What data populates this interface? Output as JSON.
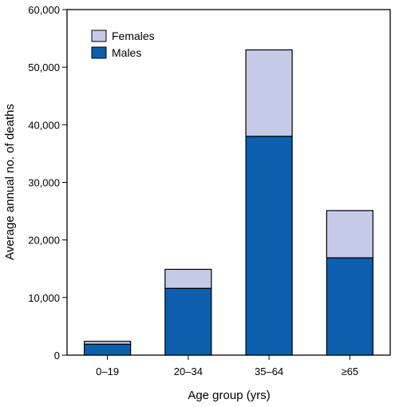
{
  "chart_data": {
    "type": "bar",
    "stacked": true,
    "categories": [
      "0–19",
      "20–34",
      "35–64",
      "≥65"
    ],
    "series": [
      {
        "name": "Males",
        "values": [
          1900,
          11600,
          38000,
          16900
        ]
      },
      {
        "name": "Females",
        "values": [
          500,
          3300,
          15000,
          8200
        ]
      }
    ],
    "xlabel": "Age group (yrs)",
    "ylabel": "Average annual no. of deaths",
    "ylim": [
      0,
      60000
    ],
    "yticks": [
      0,
      10000,
      20000,
      30000,
      40000,
      50000,
      60000
    ],
    "ytick_labels": [
      "0",
      "10,000",
      "20,000",
      "30,000",
      "40,000",
      "50,000",
      "60,000"
    ],
    "grid": false,
    "legend_position": "top-left",
    "legend": [
      {
        "label": "Females",
        "color": "#c5cae9"
      },
      {
        "label": "Males",
        "color": "#0b5fad"
      }
    ],
    "colors": {
      "Males": "#0b5fad",
      "Females": "#c5cae9",
      "outline": "#000000"
    }
  }
}
